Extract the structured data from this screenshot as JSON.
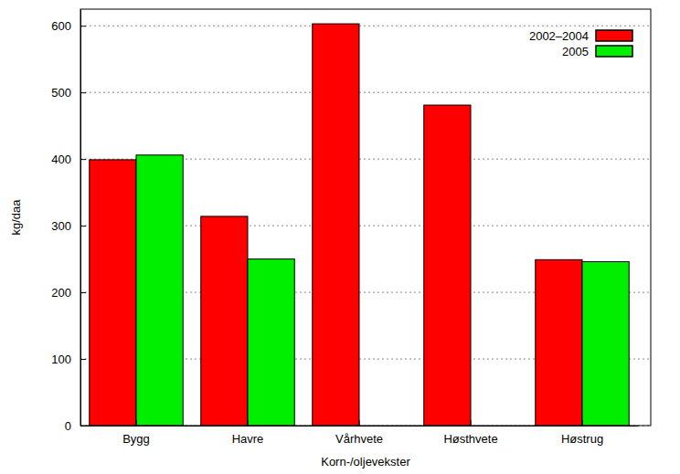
{
  "chart_data": {
    "type": "bar",
    "categories": [
      "Bygg",
      "Havre",
      "Vårhvete",
      "Høsthvete",
      "Høstrug"
    ],
    "series": [
      {
        "name": "2002–2004",
        "color": "#ff0000",
        "values": [
          399,
          314,
          603,
          481,
          249
        ]
      },
      {
        "name": "2005",
        "color": "#00ee00",
        "values": [
          406,
          250,
          null,
          null,
          246
        ]
      }
    ],
    "x_label": "Korn-/oljevekster",
    "y_label": "kg/daa",
    "ylim": [
      0,
      625
    ],
    "yticks": [
      0,
      100,
      200,
      300,
      400,
      500,
      600
    ],
    "grid": true,
    "legend": "upper right"
  }
}
